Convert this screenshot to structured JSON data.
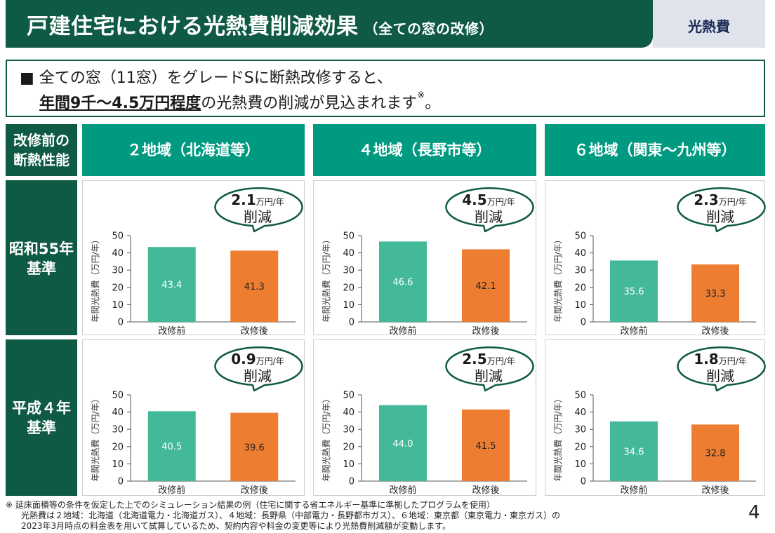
{
  "header": {
    "title": "戸建住宅における光熱費削減効果",
    "subtitle": "（全ての窓の改修）",
    "tag": "光熱費"
  },
  "summary": {
    "line1": "■ 全ての窓（11窓）をグレードSに断熱改修すると、",
    "emphasis": "年間9千～4.5万円程度",
    "line2_rest": "の光熱費の削減が見込まれます",
    "note_mark": "※",
    "end": "。"
  },
  "table": {
    "corner_label_1": "改修前の",
    "corner_label_2": "断熱性能",
    "columns": [
      "２地域（北海道等）",
      "４地域（長野市等）",
      "６地域（関東～九州等）"
    ],
    "rows": [
      {
        "label_1": "昭和55年",
        "label_2": "基準"
      },
      {
        "label_1": "平成４年",
        "label_2": "基準"
      }
    ]
  },
  "colors": {
    "before": "#44b99a",
    "after": "#ed7d31",
    "header_dark": "#0f5a45",
    "header_teal": "#009a80"
  },
  "chart_data": [
    {
      "type": "bar",
      "region": "２地域（北海道等）",
      "standard": "昭和55年基準",
      "categories": [
        "改修前",
        "改修後"
      ],
      "values": [
        43.4,
        41.3
      ],
      "ylabel": "年間光熱費（万円/年）",
      "ylim": [
        0,
        50
      ],
      "yticks": [
        0,
        10,
        20,
        30,
        40,
        50
      ],
      "saving": "2.1",
      "saving_unit": "万円/年",
      "saving_label": "削減"
    },
    {
      "type": "bar",
      "region": "４地域（長野市等）",
      "standard": "昭和55年基準",
      "categories": [
        "改修前",
        "改修後"
      ],
      "values": [
        46.6,
        42.1
      ],
      "ylabel": "年間光熱費（万円/年）",
      "ylim": [
        0,
        50
      ],
      "yticks": [
        0,
        10,
        20,
        30,
        40,
        50
      ],
      "saving": "4.5",
      "saving_unit": "万円/年",
      "saving_label": "削減"
    },
    {
      "type": "bar",
      "region": "６地域（関東～九州等）",
      "standard": "昭和55年基準",
      "categories": [
        "改修前",
        "改修後"
      ],
      "values": [
        35.6,
        33.3
      ],
      "ylabel": "年間光熱費（万円/年）",
      "ylim": [
        0,
        50
      ],
      "yticks": [
        0,
        10,
        20,
        30,
        40,
        50
      ],
      "saving": "2.3",
      "saving_unit": "万円/年",
      "saving_label": "削減"
    },
    {
      "type": "bar",
      "region": "２地域（北海道等）",
      "standard": "平成４年基準",
      "categories": [
        "改修前",
        "改修後"
      ],
      "values": [
        40.5,
        39.6
      ],
      "ylabel": "年間光熱費（万円/年）",
      "ylim": [
        0,
        50
      ],
      "yticks": [
        0,
        10,
        20,
        30,
        40,
        50
      ],
      "saving": "0.9",
      "saving_unit": "万円/年",
      "saving_label": "削減"
    },
    {
      "type": "bar",
      "region": "４地域（長野市等）",
      "standard": "平成４年基準",
      "categories": [
        "改修前",
        "改修後"
      ],
      "values": [
        44.0,
        41.5
      ],
      "ylabel": "年間光熱費（万円/年）",
      "ylim": [
        0,
        50
      ],
      "yticks": [
        0,
        10,
        20,
        30,
        40,
        50
      ],
      "saving": "2.5",
      "saving_unit": "万円/年",
      "saving_label": "削減"
    },
    {
      "type": "bar",
      "region": "６地域（関東～九州等）",
      "standard": "平成４年基準",
      "categories": [
        "改修前",
        "改修後"
      ],
      "values": [
        34.6,
        32.8
      ],
      "ylabel": "年間光熱費（万円/年）",
      "ylim": [
        0,
        50
      ],
      "yticks": [
        0,
        10,
        20,
        30,
        40,
        50
      ],
      "saving": "1.8",
      "saving_unit": "万円/年",
      "saving_label": "削減"
    }
  ],
  "footnote": {
    "line1": "※ 延床面積等の条件を仮定した上でのシミュレーション結果の例（住宅に関する省エネルギー基準に準拠したプログラムを使用）",
    "line2": "光熱費は２地域：北海道（北海道電力・北海道ガス）、４地域：長野県（中部電力・長野都市ガス）、６地域：東京都（東京電力・東京ガス）の",
    "line3": "2023年3月時点の料金表を用いて試算しているため、契約内容や料金の変更等により光熱費削減額が変動します。"
  },
  "page_number": "4"
}
